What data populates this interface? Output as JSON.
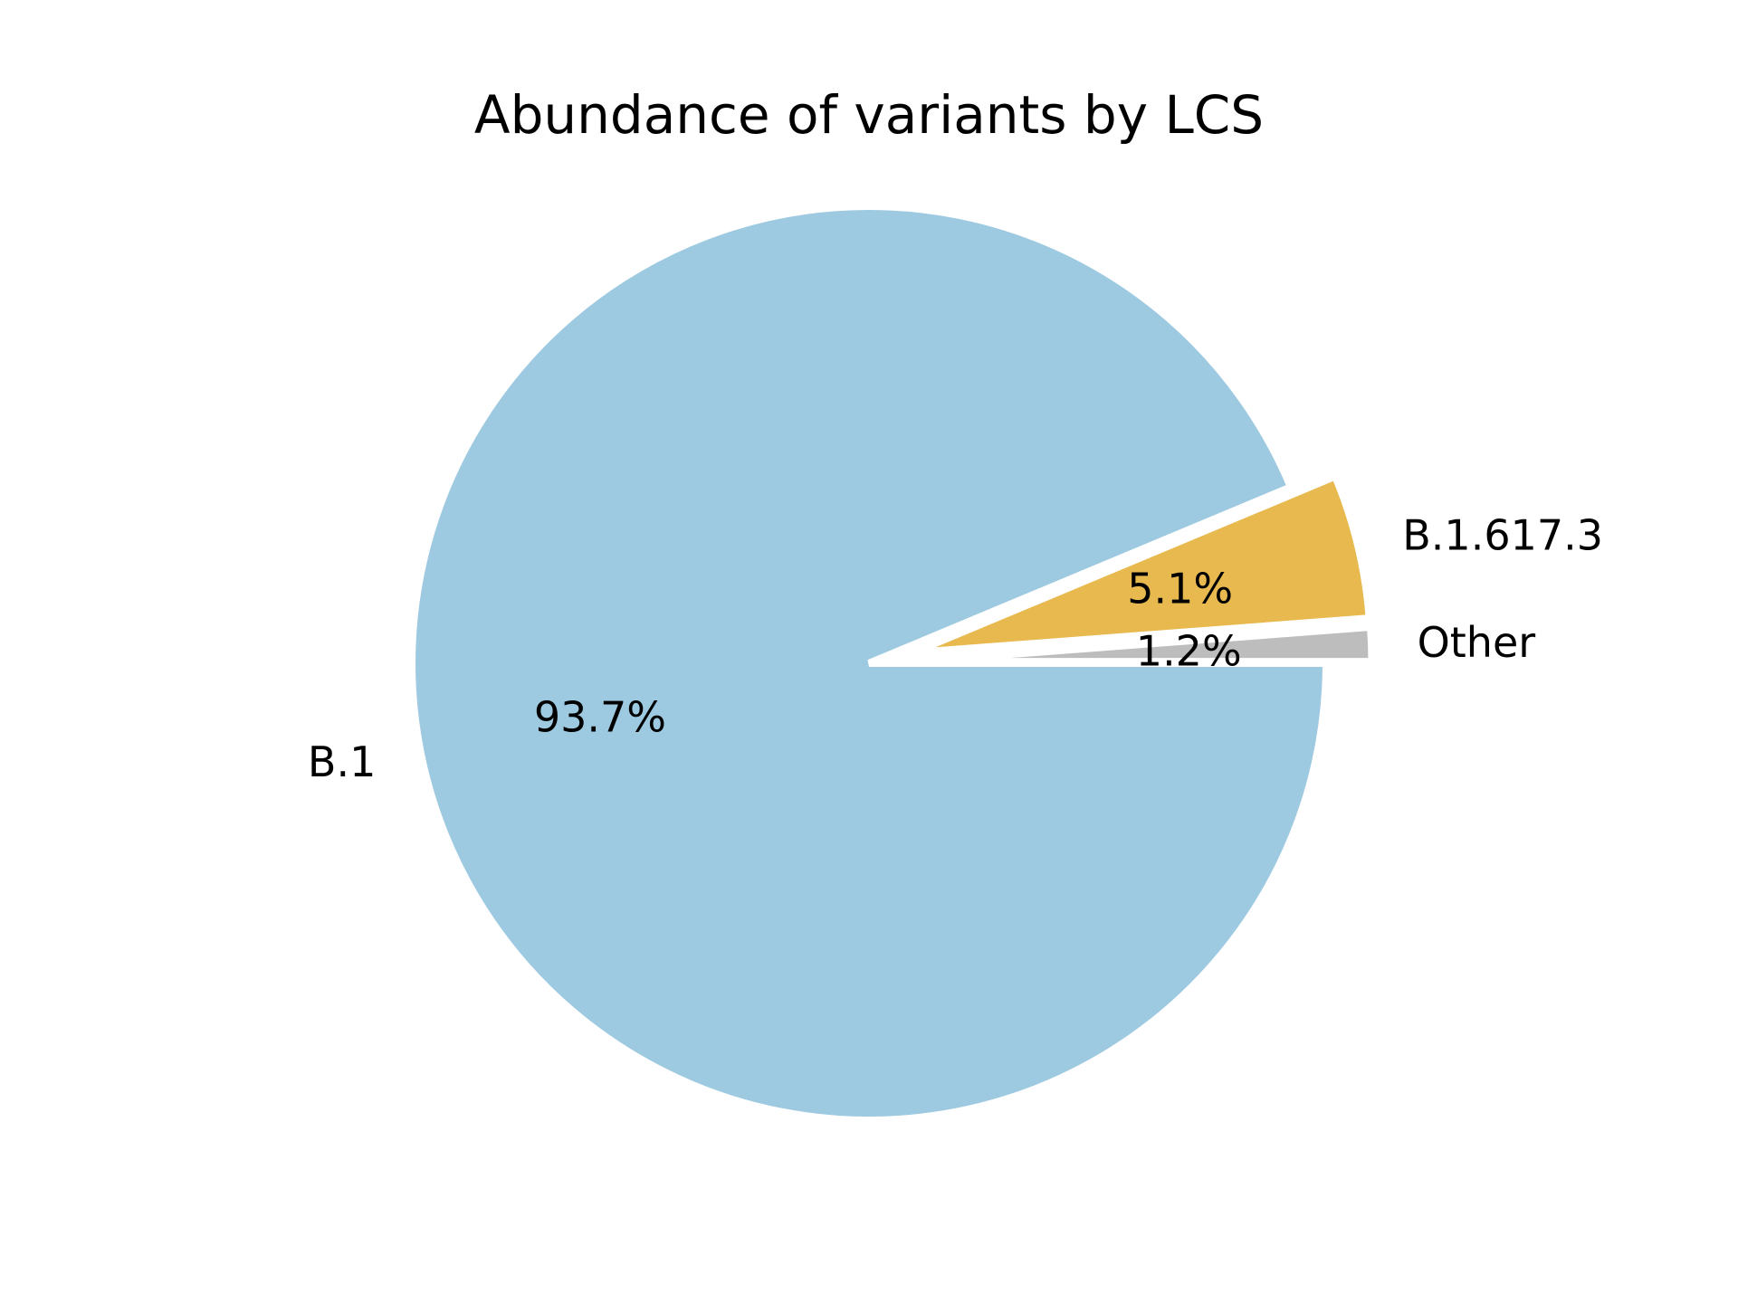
{
  "chart_data": {
    "type": "pie",
    "title": "Abundance of variants by LCS",
    "start_angle_deg": 0,
    "direction": "clockwise",
    "slices": [
      {
        "label": "B.1",
        "value": 93.7,
        "pct_label": "93.7%",
        "color": "#9ecae1",
        "exploded": false
      },
      {
        "label": "B.1.617.3",
        "value": 5.1,
        "pct_label": "5.1%",
        "color": "#e8b94f",
        "exploded": true
      },
      {
        "label": "Other",
        "value": 1.2,
        "pct_label": "1.2%",
        "color": "#bdbdbd",
        "exploded": true
      }
    ]
  }
}
